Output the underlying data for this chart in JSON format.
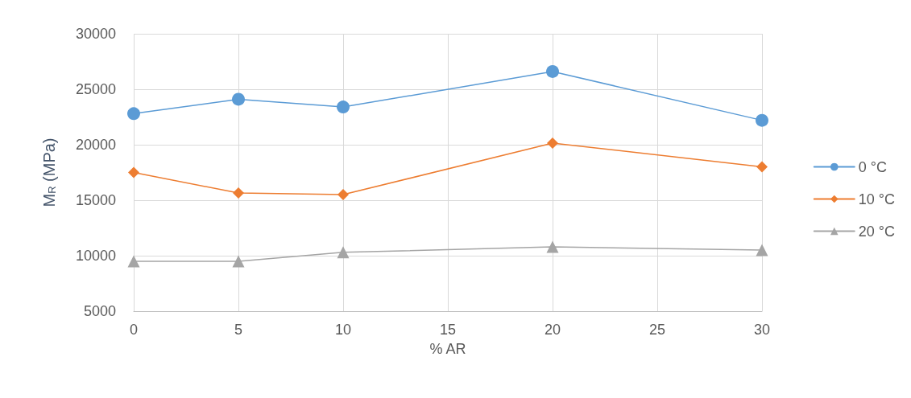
{
  "chart_data": {
    "type": "line",
    "xlabel": "% AR",
    "ylabel": "M$_{R}$ (MPa)",
    "x": [
      0,
      5,
      10,
      20,
      30
    ],
    "series": [
      {
        "name": "0 °C",
        "color": "#5b9bd5",
        "marker": "circle",
        "values": [
          22800,
          24100,
          23400,
          26600,
          22200
        ]
      },
      {
        "name": "10 °C",
        "color": "#ed7d31",
        "marker": "diamond",
        "values": [
          17500,
          15650,
          15500,
          20150,
          18000
        ]
      },
      {
        "name": "20 °C",
        "color": "#a5a5a5",
        "marker": "triangle",
        "values": [
          9500,
          9500,
          10300,
          10800,
          10500
        ]
      }
    ],
    "xlim": [
      0,
      30
    ],
    "xticks": [
      0,
      5,
      10,
      15,
      20,
      25,
      30
    ],
    "ylim": [
      5000,
      30000
    ],
    "yticks": [
      5000,
      10000,
      15000,
      20000,
      25000,
      30000
    ],
    "grid": true,
    "legend": "right",
    "line_style": "solid"
  }
}
